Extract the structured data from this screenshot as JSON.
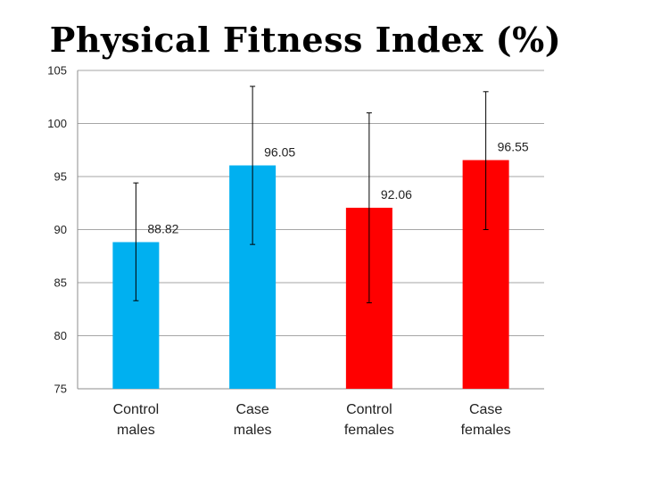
{
  "chart_data": {
    "type": "bar",
    "title": "Physical Fitness Index (%)",
    "xlabel": "",
    "ylabel": "",
    "ylim": [
      75,
      105
    ],
    "yticks": [
      75,
      80,
      85,
      90,
      95,
      100,
      105
    ],
    "grid": true,
    "legend": "none",
    "categories": [
      [
        "Control",
        "males"
      ],
      [
        "Case",
        "males"
      ],
      [
        "Control",
        "females"
      ],
      [
        "Case",
        "females"
      ]
    ],
    "values": [
      88.82,
      96.05,
      92.06,
      96.55
    ],
    "data_labels": [
      "88.82",
      "96.05",
      "92.06",
      "96.55"
    ],
    "error_bars": [
      {
        "low": 83.3,
        "high": 94.4
      },
      {
        "low": 88.6,
        "high": 103.5
      },
      {
        "low": 83.1,
        "high": 101.0
      },
      {
        "low": 90.0,
        "high": 103.0
      }
    ],
    "bar_colors": [
      "#00b0f0",
      "#00b0f0",
      "#ff0000",
      "#ff0000"
    ],
    "grid_color": "#a6a6a6",
    "axis_color": "#8c8c8c"
  }
}
